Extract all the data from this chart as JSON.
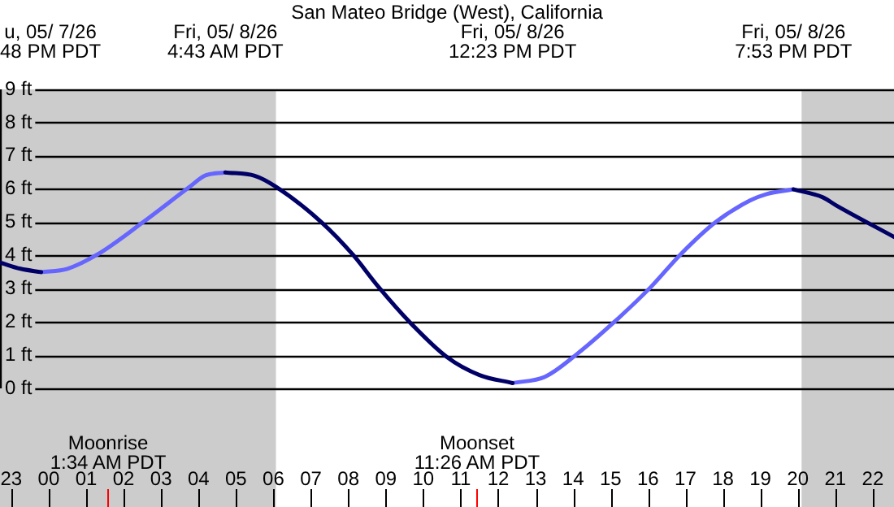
{
  "chart_data": {
    "type": "line",
    "title": "San Mateo Bridge (West), California",
    "annotations": [
      "u, 05/ 7/26\n48 PM PDT",
      "Fri, 05/ 8/26\n4:43 AM PDT",
      "Fri, 05/ 8/26\n12:23 PM PDT",
      "Fri, 05/ 8/26\n7:53 PM PDT"
    ],
    "series": [
      {
        "color": "#000066",
        "x": [
          "--05-07T22:42",
          "--05-07T23:15",
          "--05-07T23:48",
          "--05-08T02:00",
          "--05-08T04:43",
          "--05-08T05:30",
          "--05-08T06:04",
          "--05-08T07:17",
          "--05-08T08:07",
          "--05-08T08:48",
          "--05-08T09:38",
          "--05-08T10:38",
          "--05-08T11:30",
          "--05-08T12:23",
          "--05-08T16:00",
          "--05-08T19:53",
          "--05-08T20:40",
          "--05-08T21:02",
          "--05-08T22:34"
        ],
        "values": [
          3.79,
          3.6,
          3.5,
          null,
          6.5,
          6.4,
          6.07,
          5.0,
          4.03,
          3.06,
          2.0,
          0.94,
          0.4,
          0.16,
          null,
          5.99,
          5.75,
          5.5,
          4.56
        ]
      },
      {
        "color": "#6666ff",
        "x": [
          "--05-07T23:48",
          "--05-08T00:30",
          "--05-08T01:18",
          "--05-08T02:31",
          "--05-08T03:46",
          "--05-08T04:10",
          "--05-08T04:43",
          "--05-08T08:00",
          "--05-08T12:23",
          "--05-08T13:15",
          "--05-08T14:06",
          "--05-08T15:06",
          "--05-08T16:05",
          "--05-08T16:52",
          "--05-08T17:48",
          "--05-08T18:44",
          "--05-08T19:10",
          "--05-08T19:53"
        ],
        "values": [
          3.5,
          3.6,
          4.03,
          5.0,
          6.07,
          6.4,
          6.5,
          null,
          0.16,
          0.35,
          1.03,
          2.0,
          3.06,
          4.03,
          5.0,
          5.66,
          5.85,
          5.99
        ]
      }
    ],
    "xlim": [
      "--05-07T22:42",
      "--05-08T22:34"
    ],
    "xticks": [
      {
        "value": "--05-07T23:00",
        "label": "23"
      },
      {
        "value": "--05-08T00:00",
        "label": "00"
      },
      {
        "value": "--05-08T01:00",
        "label": "01"
      },
      {
        "value": "--05-08T02:00",
        "label": "02"
      },
      {
        "value": "--05-08T03:00",
        "label": "03"
      },
      {
        "value": "--05-08T04:00",
        "label": "04"
      },
      {
        "value": "--05-08T05:00",
        "label": "05"
      },
      {
        "value": "--05-08T06:00",
        "label": "06"
      },
      {
        "value": "--05-08T07:00",
        "label": "07"
      },
      {
        "value": "--05-08T08:00",
        "label": "08"
      },
      {
        "value": "--05-08T09:00",
        "label": "09"
      },
      {
        "value": "--05-08T10:00",
        "label": "10"
      },
      {
        "value": "--05-08T11:00",
        "label": "11"
      },
      {
        "value": "--05-08T12:00",
        "label": "12"
      },
      {
        "value": "--05-08T13:00",
        "label": "13"
      },
      {
        "value": "--05-08T14:00",
        "label": "14"
      },
      {
        "value": "--05-08T15:00",
        "label": "15"
      },
      {
        "value": "--05-08T16:00",
        "label": "16"
      },
      {
        "value": "--05-08T17:00",
        "label": "17"
      },
      {
        "value": "--05-08T18:00",
        "label": "18"
      },
      {
        "value": "--05-08T19:00",
        "label": "19"
      },
      {
        "value": "--05-08T20:00",
        "label": "20"
      },
      {
        "value": "--05-08T21:00",
        "label": "21"
      },
      {
        "value": "--05-08T22:00",
        "label": "22"
      }
    ],
    "ylim": [
      0,
      9
    ],
    "yticks": [
      {
        "value": 0,
        "label": "0 ft"
      },
      {
        "value": 1,
        "label": "1 ft"
      },
      {
        "value": 2,
        "label": "2 ft"
      },
      {
        "value": 3,
        "label": "3 ft"
      },
      {
        "value": 4,
        "label": "4 ft"
      },
      {
        "value": 5,
        "label": "5 ft"
      },
      {
        "value": 6,
        "label": "6 ft"
      },
      {
        "value": 7,
        "label": "7 ft"
      },
      {
        "value": 8,
        "label": "8 ft"
      },
      {
        "value": 9,
        "label": "9 ft"
      }
    ],
    "bands": [
      {
        "axis": "x",
        "from": "--05-07T22:42",
        "to": "--05-08T06:04",
        "color": "#cccccc"
      },
      {
        "axis": "x",
        "from": "--05-08T20:06",
        "to": "--05-08T22:34",
        "color": "#cccccc"
      }
    ],
    "ref_lines": [
      {
        "axis": "x",
        "value": "--05-08T01:34",
        "label": "Moonrise\n1:34 AM PDT",
        "color": "#ff0000"
      },
      {
        "axis": "x",
        "value": "--05-08T11:26",
        "label": "Moonset\n11:26 AM PDT",
        "color": "#ff0000"
      }
    ],
    "grid": "y",
    "legend": false,
    "marker": "none"
  }
}
